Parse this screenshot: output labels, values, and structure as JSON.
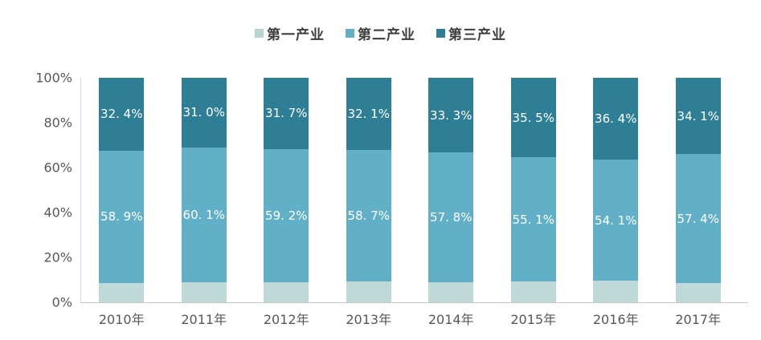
{
  "legend": {
    "items": [
      {
        "label": "第一产业",
        "color": "#b9d5d3"
      },
      {
        "label": "第二产业",
        "color": "#60b0c7"
      },
      {
        "label": "第三产业",
        "color": "#2e7e97"
      }
    ]
  },
  "axes": {
    "y_ticks": [
      "100%",
      "80%",
      "60%",
      "40%",
      "20%",
      "0%"
    ],
    "x_labels": [
      "2010年",
      "2011年",
      "2012年",
      "2013年",
      "2014年",
      "2015年",
      "2016年",
      "2017年"
    ]
  },
  "chart_data": {
    "type": "bar",
    "stacked": true,
    "title": "",
    "xlabel": "",
    "ylabel": "",
    "ylim": [
      0,
      100
    ],
    "grid": false,
    "legend_position": "top",
    "categories": [
      "2010年",
      "2011年",
      "2012年",
      "2013年",
      "2014年",
      "2015年",
      "2016年",
      "2017年"
    ],
    "series": [
      {
        "name": "第一产业",
        "color": "#bfd8d8",
        "values": [
          8.7,
          8.9,
          9.1,
          9.2,
          8.9,
          9.4,
          9.5,
          8.5
        ],
        "labels": [
          "",
          "",
          "",
          "",
          "",
          "",
          "",
          ""
        ]
      },
      {
        "name": "第二产业",
        "color": "#62b0c7",
        "values": [
          58.9,
          60.1,
          59.2,
          58.7,
          57.8,
          55.1,
          54.1,
          57.4
        ],
        "labels": [
          "58. 9%",
          "60. 1%",
          "59. 2%",
          "58. 7%",
          "57. 8%",
          "55. 1%",
          "54. 1%",
          "57. 4%"
        ]
      },
      {
        "name": "第三产业",
        "color": "#2e7e96",
        "values": [
          32.4,
          31.0,
          31.7,
          32.1,
          33.3,
          35.5,
          36.4,
          34.1
        ],
        "labels": [
          "32. 4%",
          "31. 0%",
          "31. 7%",
          "32. 1%",
          "33. 3%",
          "35. 5%",
          "36. 4%",
          "34. 1%"
        ]
      }
    ],
    "label_color": "#ffffff",
    "axis_text_color": "#575757",
    "axis_line_color": "#c6c6c6"
  }
}
